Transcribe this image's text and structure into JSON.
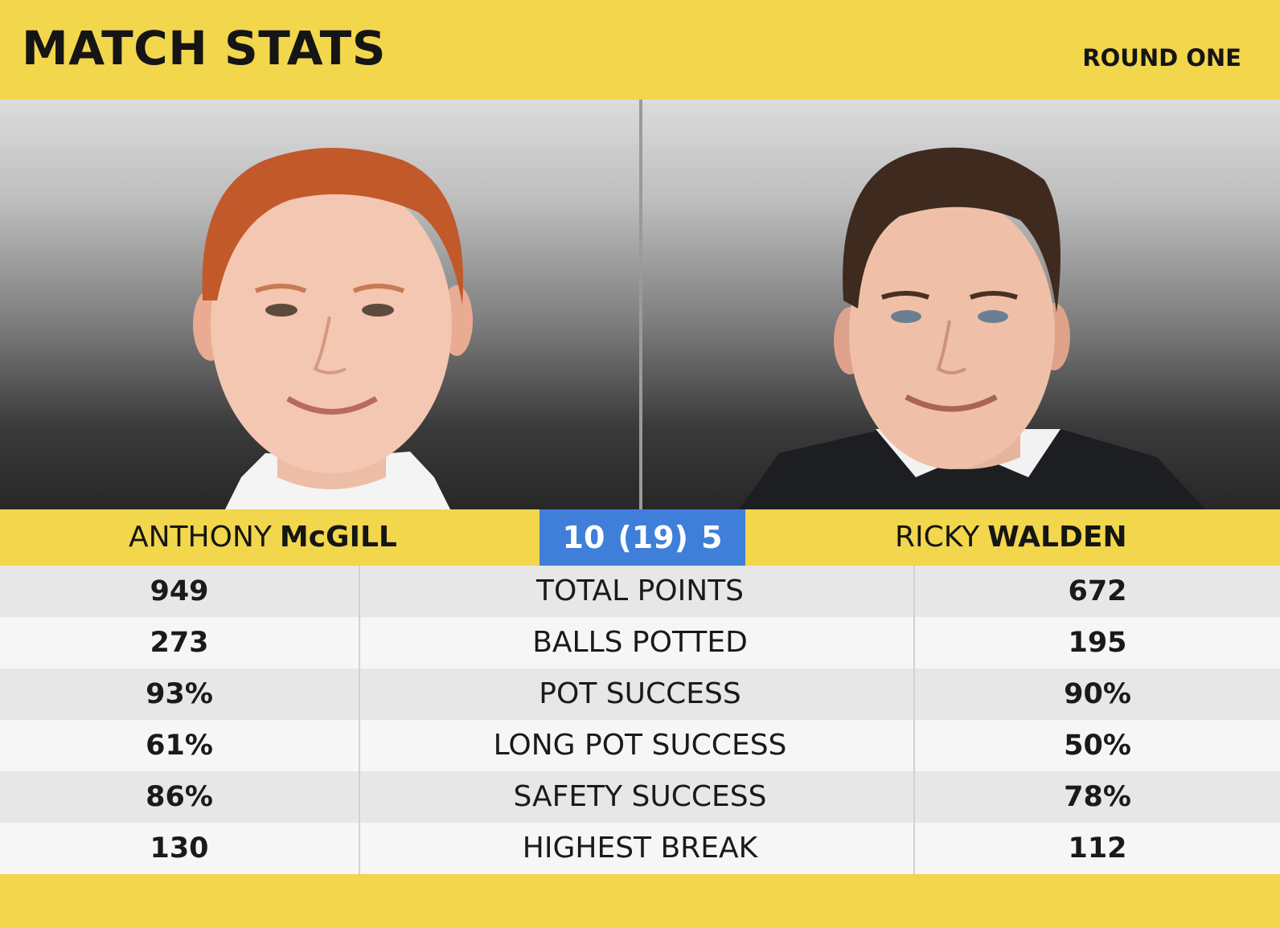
{
  "header": {
    "title": "MATCH STATS",
    "round": "ROUND ONE"
  },
  "players": {
    "left": {
      "first": "ANTHONY",
      "last": "McGILL",
      "portrait": "portrait-red-hair"
    },
    "right": {
      "first": "RICKY",
      "last": "WALDEN",
      "portrait": "portrait-dark-hair"
    }
  },
  "score": {
    "left": "10",
    "best_of": "(19)",
    "right": "5"
  },
  "stats": [
    {
      "label": "TOTAL POINTS",
      "left": "949",
      "right": "672"
    },
    {
      "label": "BALLS POTTED",
      "left": "273",
      "right": "195"
    },
    {
      "label": "POT SUCCESS",
      "left": "93%",
      "right": "90%"
    },
    {
      "label": "LONG POT SUCCESS",
      "left": "61%",
      "right": "50%"
    },
    {
      "label": "SAFETY SUCCESS",
      "left": "86%",
      "right": "78%"
    },
    {
      "label": "HIGHEST BREAK",
      "left": "130",
      "right": "112"
    }
  ],
  "colors": {
    "accent_yellow": "#f2d64c",
    "score_blue": "#3f7fd9",
    "row_dark": "#e7e7e7",
    "row_light": "#f6f6f6"
  }
}
